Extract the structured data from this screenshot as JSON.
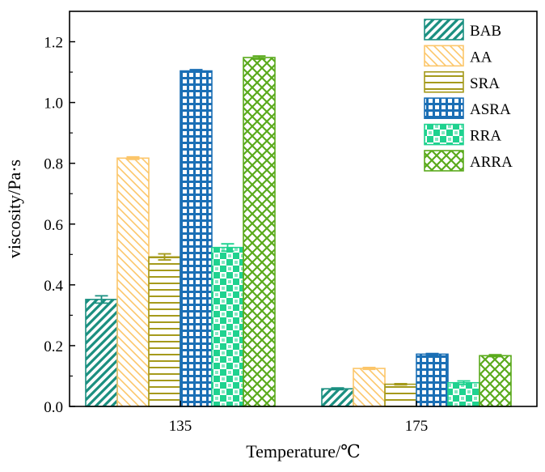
{
  "chart_data": {
    "type": "bar",
    "title": "",
    "xlabel": "Temperature/℃",
    "ylabel": "viscosity/Pa·s",
    "categories": [
      "135",
      "175"
    ],
    "ylim": [
      0,
      1.3
    ],
    "yticks": [
      0.0,
      0.2,
      0.4,
      0.6,
      0.8,
      1.0,
      1.2
    ],
    "ytick_labels": [
      "0.0",
      "0.2",
      "0.4",
      "0.6",
      "0.8",
      "1.0",
      "1.2"
    ],
    "legend_position": "top-right",
    "series": [
      {
        "name": "BAB",
        "values": [
          0.352,
          0.058
        ],
        "errors": [
          0.012,
          0.003
        ],
        "color": "#1a8f80",
        "pattern": "diag-left"
      },
      {
        "name": "AA",
        "values": [
          0.817,
          0.125
        ],
        "errors": [
          0.004,
          0.003
        ],
        "color": "#fcc66a",
        "pattern": "diag-right"
      },
      {
        "name": "SRA",
        "values": [
          0.492,
          0.073
        ],
        "errors": [
          0.01,
          0.002
        ],
        "color": "#a59a1c",
        "pattern": "horizontal"
      },
      {
        "name": "ASRA",
        "values": [
          1.104,
          0.172
        ],
        "errors": [
          0.004,
          0.002
        ],
        "color": "#1b6fb5",
        "pattern": "grid"
      },
      {
        "name": "RRA",
        "values": [
          0.523,
          0.078
        ],
        "errors": [
          0.012,
          0.006
        ],
        "color": "#1fd28f",
        "pattern": "checker"
      },
      {
        "name": "ARRA",
        "values": [
          1.148,
          0.167
        ],
        "errors": [
          0.005,
          0.003
        ],
        "color": "#5aaa1c",
        "pattern": "crosshatch"
      }
    ]
  }
}
